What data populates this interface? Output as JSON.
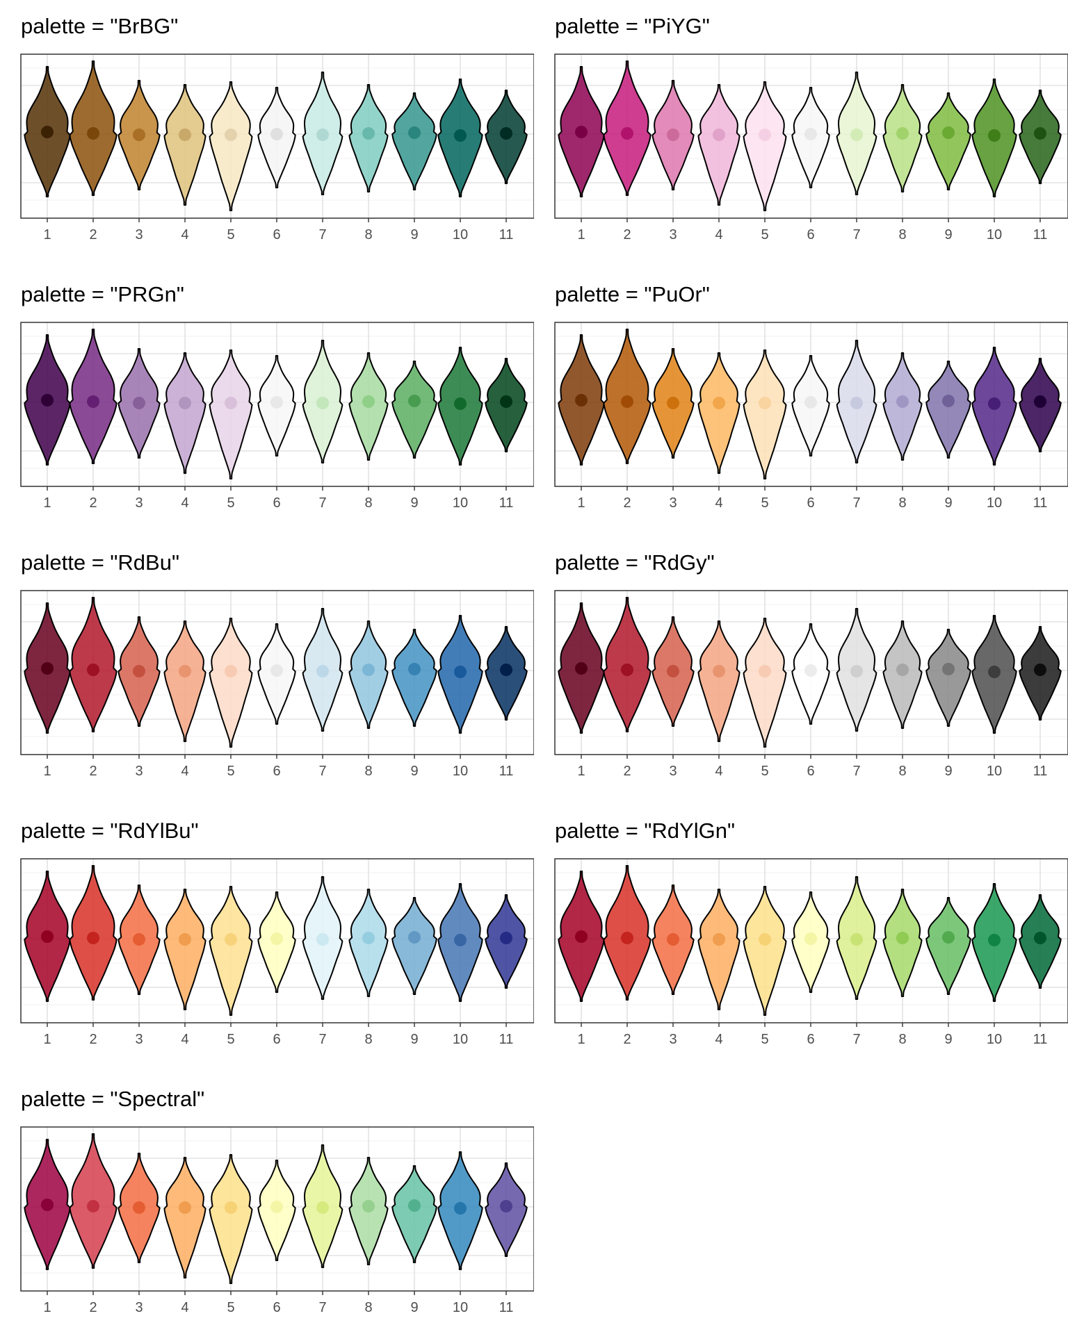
{
  "chart_data": [
    {
      "type": "violin",
      "title": "palette = \"BrBG\"",
      "categories": [
        "1",
        "2",
        "3",
        "4",
        "5",
        "6",
        "7",
        "8",
        "9",
        "10",
        "11"
      ],
      "fills": [
        "#543005",
        "#8c510a",
        "#bf812d",
        "#dfc27d",
        "#f6e8c3",
        "#f5f5f5",
        "#c7eae5",
        "#80cdc1",
        "#35978f",
        "#01665e",
        "#003c30"
      ],
      "dots": [
        "#3c2204",
        "#7a4609",
        "#a96f24",
        "#c9a969",
        "#e3d2ac",
        "#e0e0e0",
        "#b0d8d2",
        "#68b8ab",
        "#2a857e",
        "#015850",
        "#002c24"
      ]
    },
    {
      "type": "violin",
      "title": "palette = \"PiYG\"",
      "categories": [
        "1",
        "2",
        "3",
        "4",
        "5",
        "6",
        "7",
        "8",
        "9",
        "10",
        "11"
      ],
      "fills": [
        "#8e0152",
        "#c51b7d",
        "#de77ae",
        "#f1b6da",
        "#fde0ef",
        "#f7f7f7",
        "#e6f5d0",
        "#b8e186",
        "#7fbc41",
        "#4d9221",
        "#276419"
      ],
      "dots": [
        "#7a0046",
        "#b0126c",
        "#cc6a9c",
        "#e0a2c8",
        "#f5cfe3",
        "#e8e8e8",
        "#d3ecb6",
        "#a2d26c",
        "#6aa932",
        "#3f7e18",
        "#1d5212"
      ]
    },
    {
      "type": "violin",
      "title": "palette = \"PRGn\"",
      "categories": [
        "1",
        "2",
        "3",
        "4",
        "5",
        "6",
        "7",
        "8",
        "9",
        "10",
        "11"
      ],
      "fills": [
        "#40004b",
        "#762a83",
        "#9970ab",
        "#c2a5cf",
        "#e7d4e8",
        "#f7f7f7",
        "#d9f0d3",
        "#a6dba0",
        "#5aae61",
        "#1b7837",
        "#00441b"
      ],
      "dots": [
        "#2e0036",
        "#651f72",
        "#87609a",
        "#b095be",
        "#d8c0da",
        "#e8e8e8",
        "#c3e6bb",
        "#8fcf88",
        "#489c50",
        "#116a2b",
        "#003414"
      ]
    },
    {
      "type": "violin",
      "title": "palette = \"PuOr\"",
      "categories": [
        "1",
        "2",
        "3",
        "4",
        "5",
        "6",
        "7",
        "8",
        "9",
        "10",
        "11"
      ],
      "fills": [
        "#7f3b08",
        "#b35806",
        "#e08214",
        "#fdb863",
        "#fee0b6",
        "#f7f7f7",
        "#d8daeb",
        "#b2abd2",
        "#8073ac",
        "#542788",
        "#2d004b"
      ],
      "dots": [
        "#6c3005",
        "#a04c04",
        "#cc710c",
        "#f2a64c",
        "#f9d3a0",
        "#e8e8e8",
        "#c7c9df",
        "#9f96c4",
        "#6f6198",
        "#471e76",
        "#1e0036"
      ]
    },
    {
      "type": "violin",
      "title": "palette = \"RdBu\"",
      "categories": [
        "1",
        "2",
        "3",
        "4",
        "5",
        "6",
        "7",
        "8",
        "9",
        "10",
        "11"
      ],
      "fills": [
        "#67001f",
        "#b2182b",
        "#d6604d",
        "#f4a582",
        "#fddbc7",
        "#f7f7f7",
        "#d1e5f0",
        "#92c5de",
        "#4393c3",
        "#2166ac",
        "#053061"
      ],
      "dots": [
        "#520016",
        "#9e1024",
        "#c45140",
        "#e8946f",
        "#f7cbb2",
        "#e8e8e8",
        "#bcd8e8",
        "#7bb6d6",
        "#3682b3",
        "#185a9c",
        "#021f4a"
      ]
    },
    {
      "type": "violin",
      "title": "palette = \"RdGy\"",
      "categories": [
        "1",
        "2",
        "3",
        "4",
        "5",
        "6",
        "7",
        "8",
        "9",
        "10",
        "11"
      ],
      "fills": [
        "#67001f",
        "#b2182b",
        "#d6604d",
        "#f4a582",
        "#fddbc7",
        "#ffffff",
        "#e0e0e0",
        "#bababa",
        "#878787",
        "#4d4d4d",
        "#1a1a1a"
      ],
      "dots": [
        "#520016",
        "#9e1024",
        "#c45140",
        "#e8946f",
        "#f7cbb2",
        "#ececec",
        "#cfcfcf",
        "#a6a6a6",
        "#747474",
        "#3d3d3d",
        "#0d0d0d"
      ]
    },
    {
      "type": "violin",
      "title": "palette = \"RdYlBu\"",
      "categories": [
        "1",
        "2",
        "3",
        "4",
        "5",
        "6",
        "7",
        "8",
        "9",
        "10",
        "11"
      ],
      "fills": [
        "#a50026",
        "#d73027",
        "#f46d43",
        "#fdae61",
        "#fee090",
        "#ffffbf",
        "#e0f3f8",
        "#abd9e9",
        "#74add1",
        "#4575b4",
        "#313695"
      ],
      "dots": [
        "#900020",
        "#c4241d",
        "#e45d33",
        "#f09d4f",
        "#f7d27a",
        "#f5f5a6",
        "#cce8f0",
        "#95cde0",
        "#6199c4",
        "#3866a5",
        "#252b84"
      ]
    },
    {
      "type": "violin",
      "title": "palette = \"RdYlGn\"",
      "categories": [
        "1",
        "2",
        "3",
        "4",
        "5",
        "6",
        "7",
        "8",
        "9",
        "10",
        "11"
      ],
      "fills": [
        "#a50026",
        "#d73027",
        "#f46d43",
        "#fdae61",
        "#fee08b",
        "#ffffbf",
        "#d9ef8b",
        "#a6d96a",
        "#66bd63",
        "#1a9850",
        "#006837"
      ],
      "dots": [
        "#900020",
        "#c4241d",
        "#e45d33",
        "#f09d4f",
        "#f7d275",
        "#f5f5a6",
        "#c8e374",
        "#90cb54",
        "#52aa4f",
        "#108444",
        "#00552c"
      ]
    },
    {
      "type": "violin",
      "title": "palette = \"Spectral\"",
      "categories": [
        "1",
        "2",
        "3",
        "4",
        "5",
        "6",
        "7",
        "8",
        "9",
        "10",
        "11"
      ],
      "fills": [
        "#9e0142",
        "#d53e4f",
        "#f46d43",
        "#fdae61",
        "#fee08b",
        "#ffffbf",
        "#e6f598",
        "#abdda4",
        "#66c2a5",
        "#3288bd",
        "#5e4fa2"
      ],
      "dots": [
        "#8a0038",
        "#c23142",
        "#e45d33",
        "#f09d4f",
        "#f7d275",
        "#f5f5a6",
        "#d6ea7e",
        "#95d08e",
        "#52b08f",
        "#2476ab",
        "#4e408f"
      ]
    }
  ]
}
